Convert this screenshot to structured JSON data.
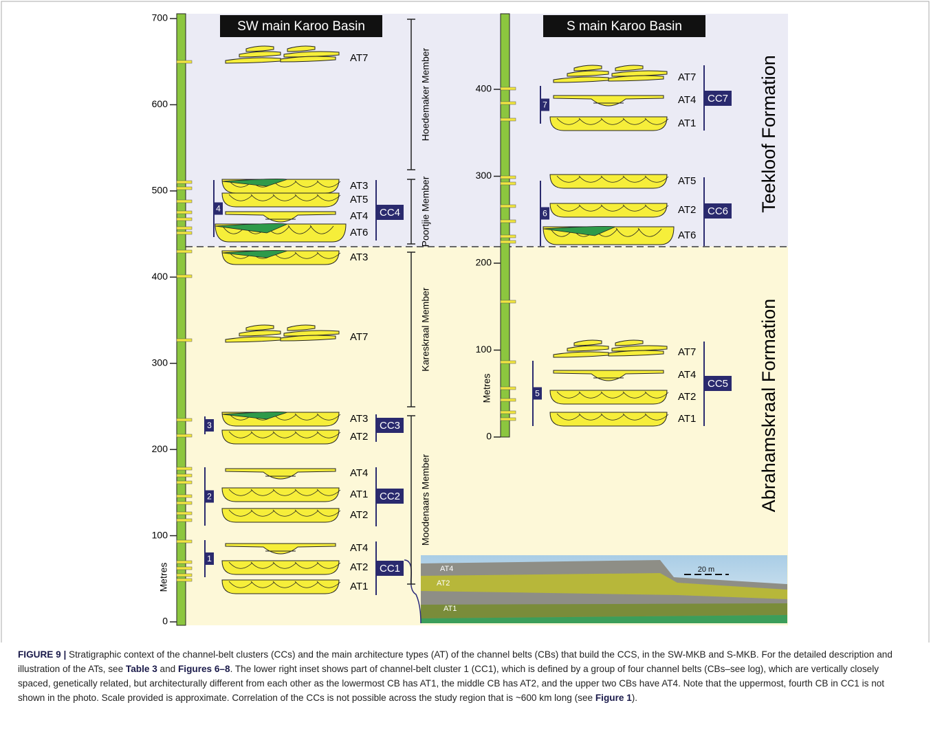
{
  "figure": {
    "left": {
      "title": "SW main Karoo Basin",
      "axis_label": "Metres",
      "ticks": [
        0,
        100,
        200,
        300,
        400,
        500,
        600,
        700
      ],
      "members": [
        "Hoedemaker Member",
        "Poortjie Member",
        "Kareskraal Member",
        "Moodenaars Member"
      ],
      "belts": [
        "AT7",
        "AT3",
        "AT5",
        "AT4",
        "AT6",
        "AT3",
        "AT7",
        "AT3",
        "AT2",
        "AT4",
        "AT1",
        "AT2",
        "AT4",
        "AT2",
        "AT1"
      ],
      "clusters": [
        {
          "number": "4",
          "label": "CC4"
        },
        {
          "number": "3",
          "label": "CC3"
        },
        {
          "number": "2",
          "label": "CC2"
        },
        {
          "number": "1",
          "label": "CC1"
        }
      ]
    },
    "right": {
      "title": "S main Karoo Basin",
      "axis_label": "Metres",
      "ticks": [
        0,
        100,
        200,
        300,
        400
      ],
      "belts": [
        "AT7",
        "AT4",
        "AT1",
        "AT5",
        "AT2",
        "AT6",
        "AT7",
        "AT4",
        "AT2",
        "AT1"
      ],
      "clusters": [
        {
          "number": "7",
          "label": "CC7"
        },
        {
          "number": "6",
          "label": "CC6"
        },
        {
          "number": "5",
          "label": "CC5"
        }
      ]
    },
    "formations": [
      "Teekloof Formation",
      "Abrahamskraal Formation"
    ],
    "photo": {
      "labels": [
        "AT4",
        "AT2",
        "AT1"
      ],
      "scale": "20 m"
    }
  },
  "caption": [
    {
      "text": "FIGURE 9 |",
      "bold": true
    },
    {
      "text": " Stratigraphic context of the channel-belt clusters (CCs) and the main architecture types (AT) of the channel belts (CBs) that build the CCS, in the SW-MKB and S-MKB. For the detailed description and illustration of the ATs, see ",
      "bold": false
    },
    {
      "text": "Table 3",
      "bold": true
    },
    {
      "text": " and ",
      "bold": false
    },
    {
      "text": "Figures 6–8",
      "bold": true
    },
    {
      "text": ". The lower right inset shows part of channel-belt cluster 1 (CC1), which is defined by a group of four channel belts (CBs–see log), which are vertically closely spaced, genetically related, but architecturally different from each other as the lowermost CB has AT1, the middle CB has AT2, and the upper two CBs have AT4. Note that the uppermost, fourth CB in CC1 is not shown in the photo. Scale provided is approximate. Correlation of the CCs is not possible across the study region that is ~600 km long (see ",
      "bold": false
    },
    {
      "text": "Figure 1",
      "bold": true
    },
    {
      "text": ").",
      "bold": false
    }
  ]
}
